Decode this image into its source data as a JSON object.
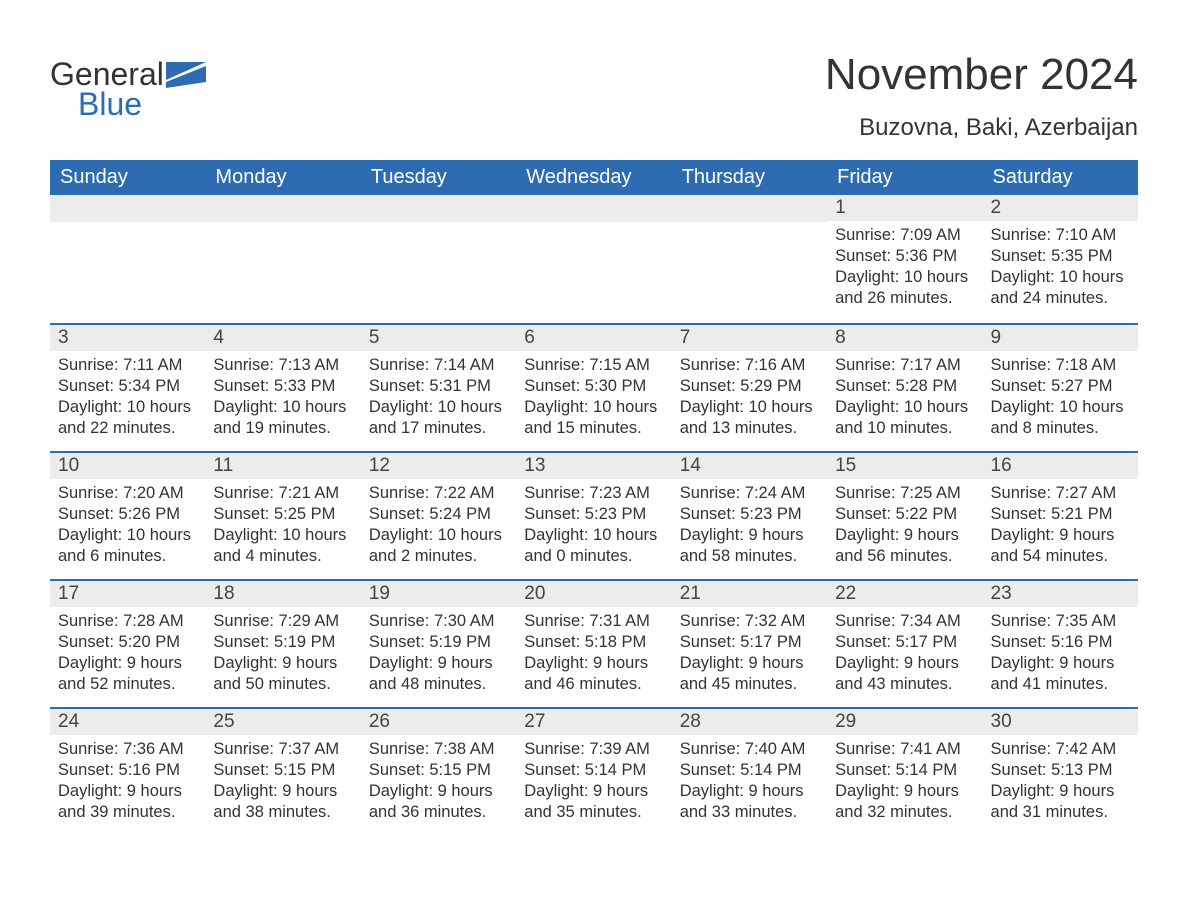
{
  "logo": {
    "word1": "General",
    "word2": "Blue"
  },
  "title": "November 2024",
  "location": "Buzovna, Baki, Azerbaijan",
  "colors": {
    "header_bg": "#2d6cb0",
    "header_text": "#ffffff",
    "daynum_bg": "#ececec",
    "border_accent": "#2d6cb0",
    "body_text": "#333333",
    "page_bg": "#ffffff"
  },
  "fonts": {
    "title_size": 44,
    "location_size": 24,
    "header_size": 20,
    "daynum_size": 19,
    "body_size": 16.5
  },
  "weekdays": [
    "Sunday",
    "Monday",
    "Tuesday",
    "Wednesday",
    "Thursday",
    "Friday",
    "Saturday"
  ],
  "weeks": [
    [
      null,
      null,
      null,
      null,
      null,
      {
        "day": "1",
        "sunrise": "7:09 AM",
        "sunset": "5:36 PM",
        "daylight": "10 hours and 26 minutes."
      },
      {
        "day": "2",
        "sunrise": "7:10 AM",
        "sunset": "5:35 PM",
        "daylight": "10 hours and 24 minutes."
      }
    ],
    [
      {
        "day": "3",
        "sunrise": "7:11 AM",
        "sunset": "5:34 PM",
        "daylight": "10 hours and 22 minutes."
      },
      {
        "day": "4",
        "sunrise": "7:13 AM",
        "sunset": "5:33 PM",
        "daylight": "10 hours and 19 minutes."
      },
      {
        "day": "5",
        "sunrise": "7:14 AM",
        "sunset": "5:31 PM",
        "daylight": "10 hours and 17 minutes."
      },
      {
        "day": "6",
        "sunrise": "7:15 AM",
        "sunset": "5:30 PM",
        "daylight": "10 hours and 15 minutes."
      },
      {
        "day": "7",
        "sunrise": "7:16 AM",
        "sunset": "5:29 PM",
        "daylight": "10 hours and 13 minutes."
      },
      {
        "day": "8",
        "sunrise": "7:17 AM",
        "sunset": "5:28 PM",
        "daylight": "10 hours and 10 minutes."
      },
      {
        "day": "9",
        "sunrise": "7:18 AM",
        "sunset": "5:27 PM",
        "daylight": "10 hours and 8 minutes."
      }
    ],
    [
      {
        "day": "10",
        "sunrise": "7:20 AM",
        "sunset": "5:26 PM",
        "daylight": "10 hours and 6 minutes."
      },
      {
        "day": "11",
        "sunrise": "7:21 AM",
        "sunset": "5:25 PM",
        "daylight": "10 hours and 4 minutes."
      },
      {
        "day": "12",
        "sunrise": "7:22 AM",
        "sunset": "5:24 PM",
        "daylight": "10 hours and 2 minutes."
      },
      {
        "day": "13",
        "sunrise": "7:23 AM",
        "sunset": "5:23 PM",
        "daylight": "10 hours and 0 minutes."
      },
      {
        "day": "14",
        "sunrise": "7:24 AM",
        "sunset": "5:23 PM",
        "daylight": "9 hours and 58 minutes."
      },
      {
        "day": "15",
        "sunrise": "7:25 AM",
        "sunset": "5:22 PM",
        "daylight": "9 hours and 56 minutes."
      },
      {
        "day": "16",
        "sunrise": "7:27 AM",
        "sunset": "5:21 PM",
        "daylight": "9 hours and 54 minutes."
      }
    ],
    [
      {
        "day": "17",
        "sunrise": "7:28 AM",
        "sunset": "5:20 PM",
        "daylight": "9 hours and 52 minutes."
      },
      {
        "day": "18",
        "sunrise": "7:29 AM",
        "sunset": "5:19 PM",
        "daylight": "9 hours and 50 minutes."
      },
      {
        "day": "19",
        "sunrise": "7:30 AM",
        "sunset": "5:19 PM",
        "daylight": "9 hours and 48 minutes."
      },
      {
        "day": "20",
        "sunrise": "7:31 AM",
        "sunset": "5:18 PM",
        "daylight": "9 hours and 46 minutes."
      },
      {
        "day": "21",
        "sunrise": "7:32 AM",
        "sunset": "5:17 PM",
        "daylight": "9 hours and 45 minutes."
      },
      {
        "day": "22",
        "sunrise": "7:34 AM",
        "sunset": "5:17 PM",
        "daylight": "9 hours and 43 minutes."
      },
      {
        "day": "23",
        "sunrise": "7:35 AM",
        "sunset": "5:16 PM",
        "daylight": "9 hours and 41 minutes."
      }
    ],
    [
      {
        "day": "24",
        "sunrise": "7:36 AM",
        "sunset": "5:16 PM",
        "daylight": "9 hours and 39 minutes."
      },
      {
        "day": "25",
        "sunrise": "7:37 AM",
        "sunset": "5:15 PM",
        "daylight": "9 hours and 38 minutes."
      },
      {
        "day": "26",
        "sunrise": "7:38 AM",
        "sunset": "5:15 PM",
        "daylight": "9 hours and 36 minutes."
      },
      {
        "day": "27",
        "sunrise": "7:39 AM",
        "sunset": "5:14 PM",
        "daylight": "9 hours and 35 minutes."
      },
      {
        "day": "28",
        "sunrise": "7:40 AM",
        "sunset": "5:14 PM",
        "daylight": "9 hours and 33 minutes."
      },
      {
        "day": "29",
        "sunrise": "7:41 AM",
        "sunset": "5:14 PM",
        "daylight": "9 hours and 32 minutes."
      },
      {
        "day": "30",
        "sunrise": "7:42 AM",
        "sunset": "5:13 PM",
        "daylight": "9 hours and 31 minutes."
      }
    ]
  ],
  "labels": {
    "sunrise": "Sunrise: ",
    "sunset": "Sunset: ",
    "daylight": "Daylight: "
  }
}
